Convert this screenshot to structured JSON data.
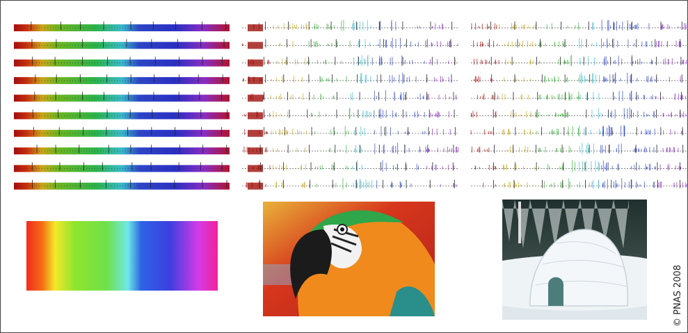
{
  "copyright": "© PNAS 2008"
}
